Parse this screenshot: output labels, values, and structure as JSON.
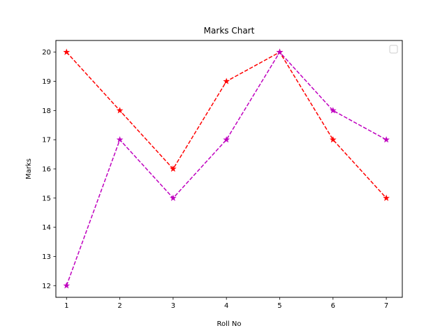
{
  "chart_data": {
    "type": "line",
    "title": "Marks Chart",
    "xlabel": "Roll No",
    "ylabel": "Marks",
    "x": [
      1,
      2,
      3,
      4,
      5,
      6,
      7
    ],
    "xticks": [
      "1",
      "2",
      "3",
      "4",
      "5",
      "6",
      "7"
    ],
    "yticks": [
      "12",
      "13",
      "14",
      "15",
      "16",
      "17",
      "18",
      "19",
      "20"
    ],
    "xlim": [
      0.8,
      7.3
    ],
    "ylim": [
      11.6,
      20.4
    ],
    "grid": false,
    "legend": {
      "visible": true,
      "placement": "top-right",
      "entries": []
    },
    "series": [
      {
        "values": [
          20,
          18,
          16,
          19,
          20,
          17,
          15
        ],
        "color": "#ff0000",
        "line_style": "dashed",
        "marker": "star"
      },
      {
        "values": [
          12,
          17,
          15,
          17,
          20,
          18,
          17
        ],
        "color": "#bf00bf",
        "line_style": "dashed",
        "marker": "star"
      }
    ]
  }
}
